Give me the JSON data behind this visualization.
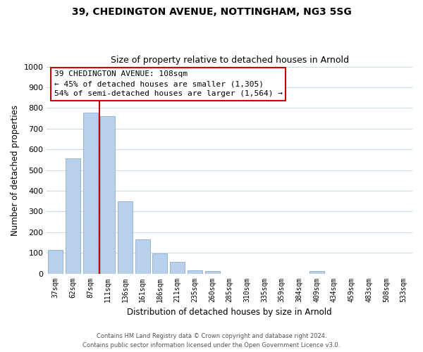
{
  "title_line1": "39, CHEDINGTON AVENUE, NOTTINGHAM, NG3 5SG",
  "title_line2": "Size of property relative to detached houses in Arnold",
  "xlabel": "Distribution of detached houses by size in Arnold",
  "ylabel": "Number of detached properties",
  "bar_labels": [
    "37sqm",
    "62sqm",
    "87sqm",
    "111sqm",
    "136sqm",
    "161sqm",
    "186sqm",
    "211sqm",
    "235sqm",
    "260sqm",
    "285sqm",
    "310sqm",
    "335sqm",
    "359sqm",
    "384sqm",
    "409sqm",
    "434sqm",
    "459sqm",
    "483sqm",
    "508sqm",
    "533sqm"
  ],
  "bar_values": [
    115,
    558,
    778,
    762,
    348,
    165,
    98,
    55,
    15,
    12,
    0,
    0,
    0,
    0,
    0,
    12,
    0,
    0,
    0,
    0,
    0
  ],
  "bar_color": "#b8d0ea",
  "bar_edge_color": "#8ab0d0",
  "vline_color": "#cc0000",
  "annotation_title": "39 CHEDINGTON AVENUE: 108sqm",
  "annotation_line1": "← 45% of detached houses are smaller (1,305)",
  "annotation_line2": "54% of semi-detached houses are larger (1,564) →",
  "annotation_box_color": "#ffffff",
  "annotation_box_edge": "#cc0000",
  "ylim": [
    0,
    1000
  ],
  "yticks": [
    0,
    100,
    200,
    300,
    400,
    500,
    600,
    700,
    800,
    900,
    1000
  ],
  "footer_line1": "Contains HM Land Registry data © Crown copyright and database right 2024.",
  "footer_line2": "Contains public sector information licensed under the Open Government Licence v3.0.",
  "background_color": "#ffffff",
  "grid_color": "#c8d8e8"
}
